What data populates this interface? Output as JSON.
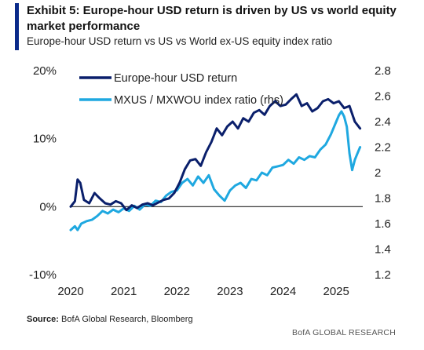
{
  "header": {
    "title": "Exhibit 5: Europe-hour USD return is driven by US vs world equity market performance",
    "subtitle": "Europe-hour USD return vs US vs World ex-US equity index ratio"
  },
  "footer": {
    "source_label": "Source:",
    "source_text": " BofA Global Research, Bloomberg",
    "brand": "BofA GLOBAL RESEARCH"
  },
  "colors": {
    "accent": "#0a2a8a",
    "series_dark": "#0a1f6b",
    "series_light": "#1fa8e0",
    "zero_line": "#222222"
  },
  "chart_data": {
    "type": "line",
    "title": "",
    "xlabel": "",
    "ylabel": "",
    "grid": false,
    "legend_position": "top-left",
    "x_ticks": [
      "2020",
      "2021",
      "2022",
      "2023",
      "2024",
      "2025"
    ],
    "y_left": {
      "lim": [
        -10,
        20
      ],
      "ticks": [
        "-10%",
        "0%",
        "10%",
        "20%"
      ],
      "tick_values": [
        -10,
        0,
        10,
        20
      ]
    },
    "y_right": {
      "lim": [
        1.2,
        2.8
      ],
      "ticks": [
        "1.2",
        "1.4",
        "1.6",
        "1.8",
        "2",
        "2.2",
        "2.4",
        "2.6",
        "2.8"
      ],
      "tick_values": [
        1.2,
        1.4,
        1.6,
        1.8,
        2.0,
        2.2,
        2.4,
        2.6,
        2.8
      ]
    },
    "x_range": [
      2020,
      2025.5
    ],
    "series": [
      {
        "name": "Europe-hour USD return",
        "axis": "left",
        "color": "#0a1f6b",
        "x": [
          2020.0,
          2020.08,
          2020.13,
          2020.18,
          2020.25,
          2020.35,
          2020.45,
          2020.55,
          2020.65,
          2020.75,
          2020.85,
          2020.95,
          2021.05,
          2021.15,
          2021.25,
          2021.35,
          2021.45,
          2021.55,
          2021.65,
          2021.75,
          2021.85,
          2021.95,
          2022.05,
          2022.15,
          2022.25,
          2022.35,
          2022.45,
          2022.55,
          2022.65,
          2022.75,
          2022.85,
          2022.95,
          2023.05,
          2023.15,
          2023.25,
          2023.35,
          2023.45,
          2023.55,
          2023.65,
          2023.75,
          2023.85,
          2023.95,
          2024.05,
          2024.15,
          2024.25,
          2024.35,
          2024.45,
          2024.55,
          2024.65,
          2024.75,
          2024.85,
          2024.95,
          2025.05,
          2025.15,
          2025.25,
          2025.35,
          2025.45
        ],
        "y": [
          0.0,
          0.8,
          4.0,
          3.5,
          1.0,
          0.5,
          2.0,
          1.2,
          0.5,
          0.3,
          0.8,
          0.5,
          -0.5,
          0.2,
          -0.2,
          0.3,
          0.5,
          0.2,
          0.6,
          1.0,
          1.2,
          2.0,
          3.5,
          5.5,
          6.8,
          7.0,
          6.0,
          8.0,
          9.5,
          11.5,
          10.5,
          11.8,
          12.5,
          11.5,
          13.0,
          12.5,
          13.8,
          14.2,
          13.5,
          14.8,
          15.5,
          14.8,
          15.0,
          15.8,
          16.5,
          14.8,
          15.2,
          14.0,
          14.5,
          15.5,
          15.8,
          15.2,
          15.5,
          14.5,
          14.8,
          12.5,
          11.5
        ]
      },
      {
        "name": "MXUS / MXWOU index ratio (rhs)",
        "axis": "right",
        "color": "#1fa8e0",
        "x": [
          2020.0,
          2020.08,
          2020.13,
          2020.2,
          2020.3,
          2020.4,
          2020.5,
          2020.6,
          2020.7,
          2020.8,
          2020.9,
          2021.0,
          2021.1,
          2021.2,
          2021.3,
          2021.4,
          2021.5,
          2021.6,
          2021.7,
          2021.8,
          2021.9,
          2022.0,
          2022.1,
          2022.2,
          2022.3,
          2022.4,
          2022.5,
          2022.6,
          2022.7,
          2022.8,
          2022.9,
          2023.0,
          2023.1,
          2023.2,
          2023.3,
          2023.4,
          2023.5,
          2023.6,
          2023.7,
          2023.8,
          2023.9,
          2024.0,
          2024.1,
          2024.2,
          2024.3,
          2024.4,
          2024.5,
          2024.6,
          2024.7,
          2024.8,
          2024.9,
          2025.0,
          2025.05,
          2025.1,
          2025.15,
          2025.2,
          2025.25,
          2025.3,
          2025.35,
          2025.4,
          2025.45
        ],
        "y": [
          1.55,
          1.58,
          1.55,
          1.6,
          1.62,
          1.63,
          1.66,
          1.7,
          1.68,
          1.71,
          1.69,
          1.72,
          1.7,
          1.74,
          1.71,
          1.75,
          1.74,
          1.78,
          1.77,
          1.82,
          1.85,
          1.86,
          1.92,
          1.95,
          1.9,
          1.97,
          1.92,
          1.98,
          1.87,
          1.82,
          1.78,
          1.86,
          1.9,
          1.92,
          1.88,
          1.95,
          1.94,
          2.0,
          1.98,
          2.04,
          2.05,
          2.06,
          2.1,
          2.07,
          2.12,
          2.1,
          2.13,
          2.12,
          2.18,
          2.22,
          2.3,
          2.4,
          2.45,
          2.48,
          2.44,
          2.36,
          2.15,
          2.02,
          2.1,
          2.15,
          2.2
        ]
      }
    ]
  }
}
